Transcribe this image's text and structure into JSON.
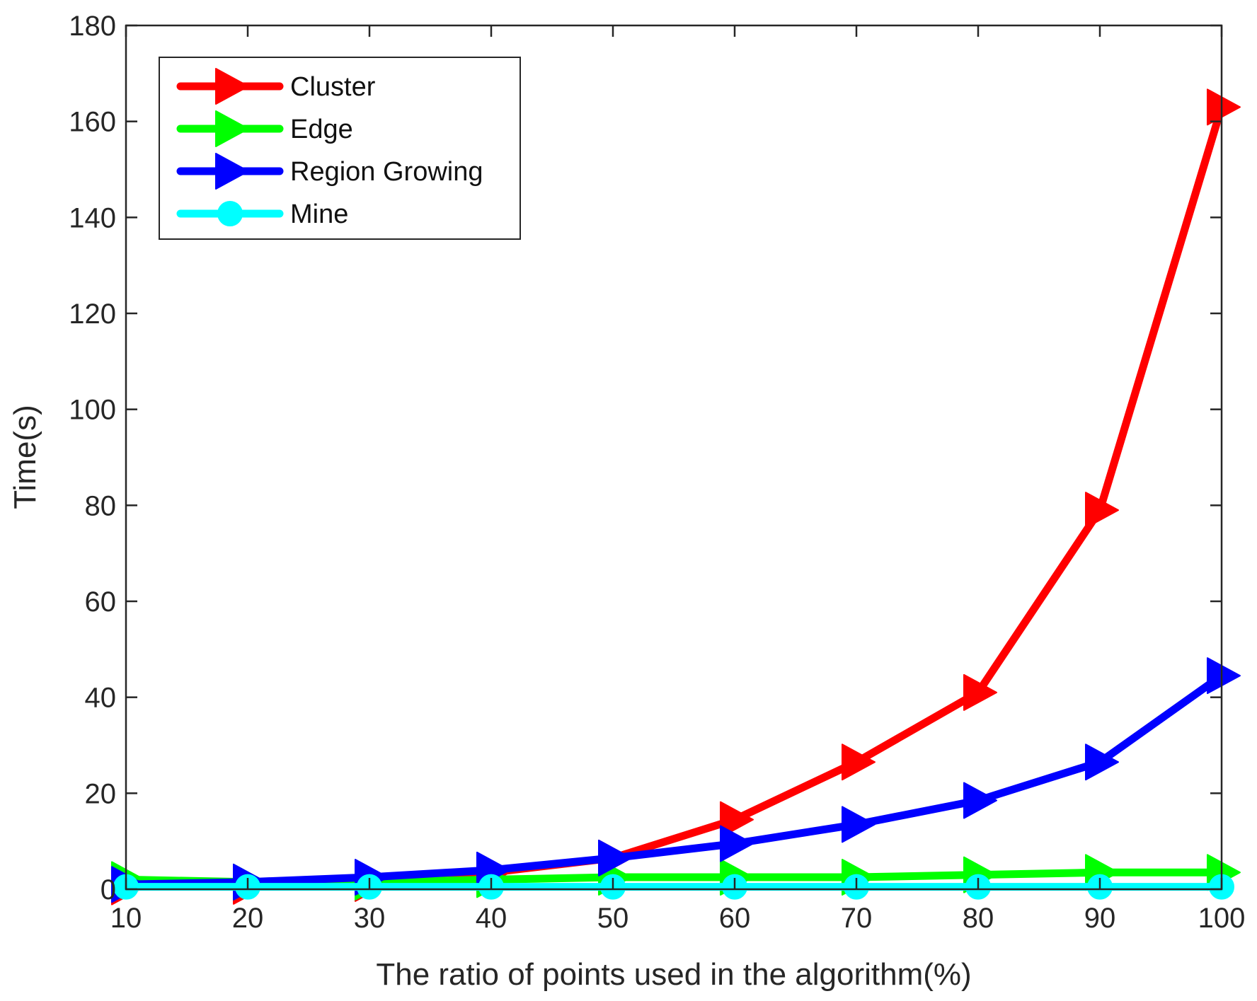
{
  "chart_data": {
    "type": "line",
    "title": "",
    "xlabel": "The ratio of points used in the algorithm(%)",
    "ylabel": "Time(s)",
    "x": [
      10,
      20,
      30,
      40,
      50,
      60,
      70,
      80,
      90,
      100
    ],
    "xlim": [
      10,
      100
    ],
    "ylim": [
      0,
      180
    ],
    "xticks": [
      10,
      20,
      30,
      40,
      50,
      60,
      70,
      80,
      90,
      100
    ],
    "yticks": [
      0,
      20,
      40,
      60,
      80,
      100,
      120,
      140,
      160,
      180
    ],
    "grid": false,
    "legend_position": "top-left",
    "series": [
      {
        "name": "Cluster",
        "color": "#ff0000",
        "marker": "triangle-right",
        "values": [
          0.5,
          0.6,
          1.2,
          3.5,
          6.5,
          14.5,
          26.5,
          41,
          79,
          163
        ]
      },
      {
        "name": "Edge",
        "color": "#00ff00",
        "marker": "triangle-right",
        "values": [
          2,
          1.5,
          1.5,
          2,
          2.5,
          2.5,
          2.5,
          3,
          3.5,
          3.5
        ]
      },
      {
        "name": "Region Growing",
        "color": "#0000ff",
        "marker": "triangle-right",
        "values": [
          1,
          1.5,
          2.5,
          4,
          6.5,
          9.5,
          13.5,
          18.5,
          26.5,
          44.5
        ]
      },
      {
        "name": "Mine",
        "color": "#00ffff",
        "marker": "circle",
        "values": [
          0.5,
          0.5,
          0.5,
          0.5,
          0.5,
          0.5,
          0.5,
          0.5,
          0.5,
          0.5
        ]
      }
    ]
  }
}
